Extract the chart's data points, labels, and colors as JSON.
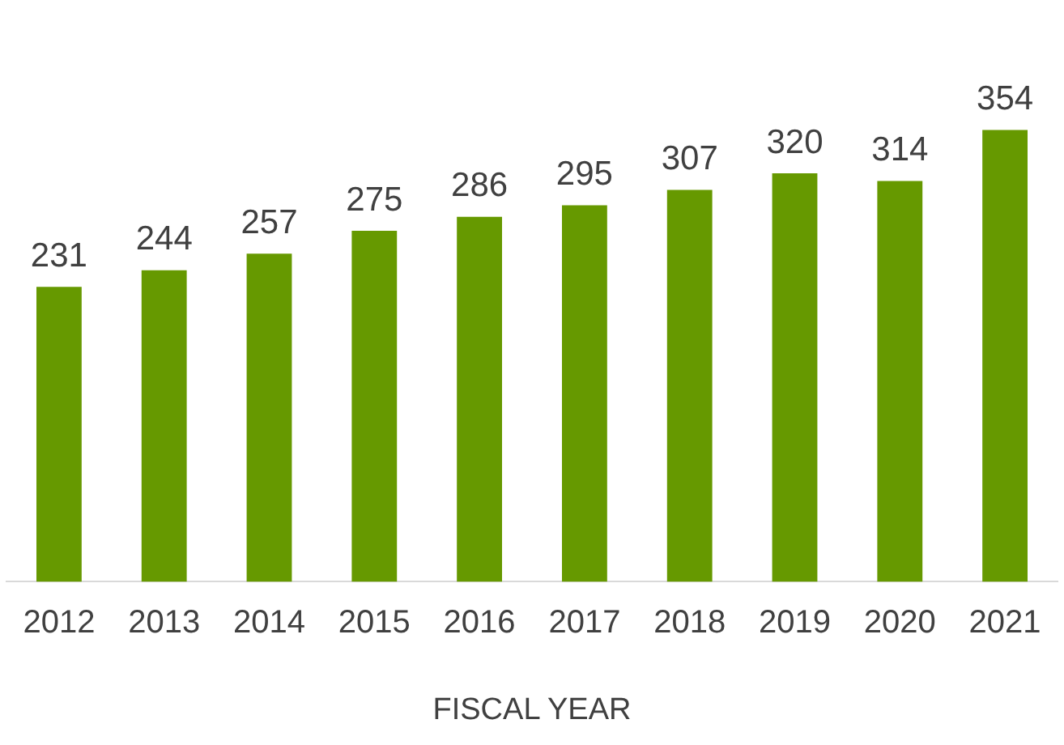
{
  "chart_data": {
    "type": "bar",
    "xlabel": "FISCAL YEAR",
    "categories": [
      "2012",
      "2013",
      "2014",
      "2015",
      "2016",
      "2017",
      "2018",
      "2019",
      "2020",
      "2021"
    ],
    "values": [
      231,
      244,
      257,
      275,
      286,
      295,
      307,
      320,
      314,
      354
    ],
    "color": "#669900",
    "data_labels": true,
    "grid": false,
    "legend": false
  }
}
